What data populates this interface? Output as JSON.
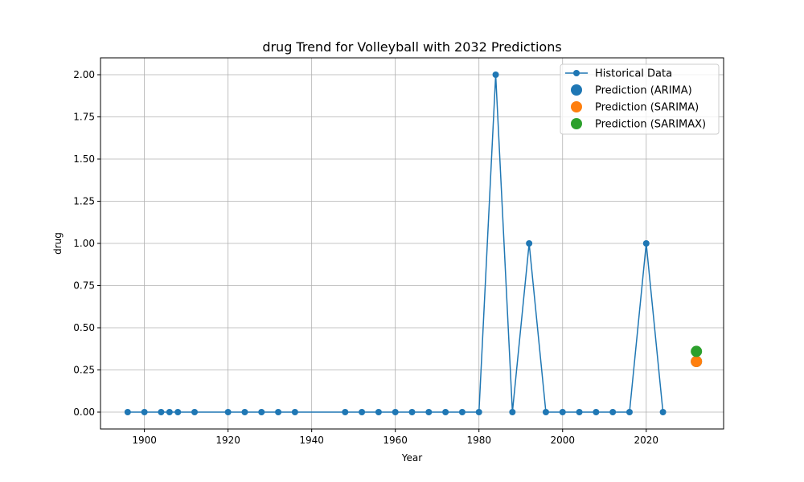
{
  "chart_data": {
    "type": "line",
    "title": "drug Trend for Volleyball with 2032 Predictions",
    "xlabel": "Year",
    "ylabel": "drug",
    "xlim": [
      1889.5,
      2038.5
    ],
    "ylim": [
      -0.1,
      2.1
    ],
    "xticks": [
      1900,
      1920,
      1940,
      1960,
      1980,
      2000,
      2020
    ],
    "yticks": [
      0.0,
      0.25,
      0.5,
      0.75,
      1.0,
      1.25,
      1.5,
      1.75,
      2.0
    ],
    "ytick_labels": [
      "0.00",
      "0.25",
      "0.50",
      "0.75",
      "1.00",
      "1.25",
      "1.50",
      "1.75",
      "2.00"
    ],
    "grid": true,
    "legend_position": "top-right",
    "series": [
      {
        "name": "Historical Data",
        "kind": "line-marker",
        "color": "#1f77b4",
        "x": [
          1896,
          1900,
          1904,
          1906,
          1908,
          1912,
          1920,
          1924,
          1928,
          1932,
          1936,
          1948,
          1952,
          1956,
          1960,
          1964,
          1968,
          1972,
          1976,
          1980,
          1984,
          1988,
          1992,
          1996,
          2000,
          2004,
          2008,
          2012,
          2016,
          2020,
          2024
        ],
        "y": [
          0,
          0,
          0,
          0,
          0,
          0,
          0,
          0,
          0,
          0,
          0,
          0,
          0,
          0,
          0,
          0,
          0,
          0,
          0,
          0,
          2,
          0,
          1,
          0,
          0,
          0,
          0,
          0,
          0,
          1,
          0
        ]
      },
      {
        "name": "Prediction (ARIMA)",
        "kind": "point",
        "color": "#1f77b4",
        "x": [
          2032
        ],
        "y": [
          0.3
        ]
      },
      {
        "name": "Prediction (SARIMA)",
        "kind": "point",
        "color": "#ff7f0e",
        "x": [
          2032
        ],
        "y": [
          0.3
        ]
      },
      {
        "name": "Prediction (SARIMAX)",
        "kind": "point",
        "color": "#2ca02c",
        "x": [
          2032
        ],
        "y": [
          0.36
        ]
      }
    ]
  }
}
